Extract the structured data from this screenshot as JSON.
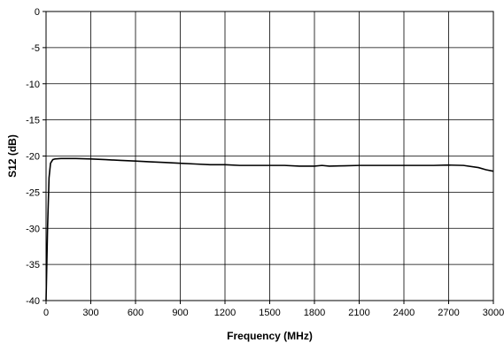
{
  "chart_data": {
    "type": "line",
    "xlabel": "Frequency (MHz)",
    "ylabel": "S12 (dB)",
    "xlim": [
      0,
      3000
    ],
    "ylim": [
      -40,
      0
    ],
    "x_ticks": [
      0,
      300,
      600,
      900,
      1200,
      1500,
      1800,
      2100,
      2400,
      2700,
      3000
    ],
    "y_ticks": [
      0,
      -5,
      -10,
      -15,
      -20,
      -25,
      -30,
      -35,
      -40
    ],
    "x_tick_labels": [
      "0",
      "300",
      "600",
      "900",
      "1200",
      "1500",
      "1800",
      "2100",
      "2400",
      "2700",
      "3000"
    ],
    "y_tick_labels": [
      "0",
      "-5",
      "-10",
      "-15",
      "-20",
      "-25",
      "-30",
      "-35",
      "-40"
    ],
    "grid": true,
    "series": [
      {
        "x": [
          0,
          10,
          20,
          30,
          45,
          60,
          100,
          200,
          300,
          400,
          500,
          600,
          700,
          800,
          900,
          1000,
          1100,
          1200,
          1300,
          1400,
          1500,
          1600,
          1700,
          1800,
          1850,
          1900,
          2000,
          2100,
          2200,
          2300,
          2400,
          2500,
          2600,
          2700,
          2800,
          2900,
          2950,
          3000
        ],
        "y": [
          -40,
          -30,
          -23,
          -21,
          -20.5,
          -20.4,
          -20.35,
          -20.35,
          -20.4,
          -20.5,
          -20.6,
          -20.7,
          -20.8,
          -20.9,
          -21.0,
          -21.1,
          -21.2,
          -21.2,
          -21.3,
          -21.3,
          -21.3,
          -21.3,
          -21.4,
          -21.4,
          -21.3,
          -21.4,
          -21.35,
          -21.3,
          -21.3,
          -21.3,
          -21.3,
          -21.3,
          -21.3,
          -21.25,
          -21.3,
          -21.6,
          -21.9,
          -22.1
        ]
      }
    ]
  }
}
